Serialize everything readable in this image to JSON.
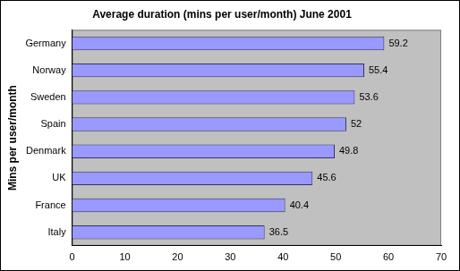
{
  "chart_data": {
    "type": "bar",
    "orientation": "horizontal",
    "title": "Average duration (mins per user/month) June 2001",
    "y_label": "Mins per user/month",
    "categories": [
      "Germany",
      "Norway",
      "Sweden",
      "Spain",
      "Denmark",
      "UK",
      "France",
      "Italy"
    ],
    "values": [
      59.2,
      55.4,
      53.6,
      52,
      49.8,
      45.6,
      40.4,
      36.5
    ],
    "color": "#9999ff",
    "xlim": [
      0,
      70
    ],
    "xticks": [
      0,
      10,
      20,
      30,
      40,
      50,
      60,
      70
    ],
    "grid": false,
    "data_labels": true
  }
}
